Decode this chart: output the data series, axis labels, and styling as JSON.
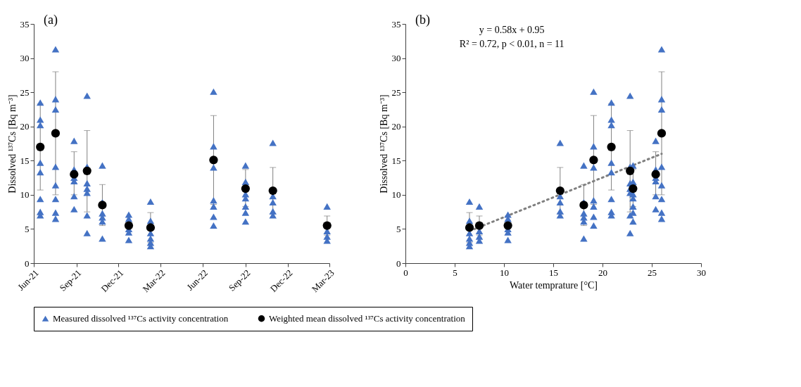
{
  "chart_data": [
    {
      "type": "scatter",
      "ylabel": "Dissolved ¹³⁷Cs [Bq m⁻³]",
      "annotations": [
        "(a)"
      ],
      "xlim": [
        "2021-06-01",
        "2023-03-01"
      ],
      "xticks": [
        {
          "value": "2021-06-01",
          "label": "Jun-21"
        },
        {
          "value": "2021-09-01",
          "label": "Sep-21"
        },
        {
          "value": "2021-12-01",
          "label": "Dec-21"
        },
        {
          "value": "2022-03-01",
          "label": "Mar-22"
        },
        {
          "value": "2022-06-01",
          "label": "Jun-22"
        },
        {
          "value": "2022-09-01",
          "label": "Sep-22"
        },
        {
          "value": "2022-12-01",
          "label": "Dec-22"
        },
        {
          "value": "2023-03-01",
          "label": "Mar-23"
        }
      ],
      "ylim": [
        0,
        35
      ],
      "yticks": [
        0,
        5,
        10,
        15,
        20,
        25,
        30,
        35
      ],
      "grid": false,
      "legend": "bottom",
      "series": [
        {
          "name": "Measured dissolved ¹³⁷Cs activity concentration",
          "marker": "triangle",
          "color": "#4472c4",
          "x": [
            "2021-06-15",
            "2021-06-15",
            "2021-06-15",
            "2021-06-15",
            "2021-06-15",
            "2021-06-15",
            "2021-06-15",
            "2021-06-15",
            "2021-07-18",
            "2021-07-18",
            "2021-07-18",
            "2021-07-18",
            "2021-07-18",
            "2021-07-18",
            "2021-07-18",
            "2021-07-18",
            "2021-08-27",
            "2021-08-27",
            "2021-08-27",
            "2021-08-27",
            "2021-08-27",
            "2021-08-27",
            "2021-09-24",
            "2021-09-24",
            "2021-09-24",
            "2021-09-24",
            "2021-09-24",
            "2021-09-24",
            "2021-09-24",
            "2021-10-27",
            "2021-10-27",
            "2021-10-27",
            "2021-10-27",
            "2021-10-27",
            "2021-10-27",
            "2021-12-23",
            "2021-12-23",
            "2021-12-23",
            "2021-12-23",
            "2021-12-23",
            "2022-02-08",
            "2022-02-08",
            "2022-02-08",
            "2022-02-08",
            "2022-02-08",
            "2022-02-08",
            "2022-06-24",
            "2022-06-24",
            "2022-06-24",
            "2022-06-24",
            "2022-06-24",
            "2022-06-24",
            "2022-06-24",
            "2022-09-01",
            "2022-09-01",
            "2022-09-01",
            "2022-09-01",
            "2022-09-01",
            "2022-09-01",
            "2022-09-01",
            "2022-10-30",
            "2022-10-30",
            "2022-10-30",
            "2022-10-30",
            "2022-10-30",
            "2023-02-24",
            "2023-02-24",
            "2023-02-24",
            "2023-02-24"
          ],
          "values": [
            23.5,
            21.0,
            20.2,
            14.7,
            13.3,
            9.4,
            7.5,
            7.0,
            31.3,
            24.0,
            22.5,
            14.1,
            11.4,
            9.4,
            7.4,
            6.5,
            17.9,
            13.7,
            12.5,
            12.0,
            9.8,
            7.9,
            24.5,
            14.1,
            11.7,
            10.9,
            10.3,
            7.0,
            4.4,
            14.3,
            8.9,
            7.3,
            6.7,
            6.1,
            3.6,
            7.1,
            6.5,
            5.0,
            4.5,
            3.4,
            9.0,
            6.2,
            4.4,
            3.6,
            3.0,
            2.5,
            25.1,
            17.1,
            14.0,
            9.2,
            8.3,
            6.8,
            5.5,
            14.3,
            11.9,
            10.1,
            9.5,
            8.3,
            7.4,
            6.1,
            17.6,
            9.8,
            8.9,
            7.6,
            7.0,
            8.3,
            4.7,
            3.9,
            3.3
          ]
        },
        {
          "name": "Weighted mean dissolved ¹³⁷Cs activity concentration",
          "marker": "circle",
          "color": "#000000",
          "x": [
            "2021-06-15",
            "2021-07-18",
            "2021-08-27",
            "2021-09-24",
            "2021-10-27",
            "2021-12-23",
            "2022-02-08",
            "2022-06-24",
            "2022-09-01",
            "2022-10-30",
            "2023-02-24"
          ],
          "values": [
            17.0,
            19.0,
            13.0,
            13.5,
            8.5,
            5.5,
            5.2,
            15.1,
            10.9,
            10.6,
            5.5
          ],
          "errors": [
            [
              10.7,
              23.3
            ],
            [
              10.0,
              28.0
            ],
            [
              10.0,
              16.3
            ],
            [
              7.5,
              19.4
            ],
            [
              5.5,
              11.5
            ],
            null,
            [
              3.0,
              7.4
            ],
            [
              8.6,
              21.6
            ],
            [
              8.3,
              13.7
            ],
            [
              7.2,
              14.0
            ],
            [
              4.1,
              6.9
            ]
          ]
        }
      ]
    },
    {
      "type": "scatter",
      "xlabel": "Water temprature [°C]",
      "ylabel": "Dissolved ¹³⁷Cs [Bq m⁻³]",
      "annotations": [
        "(b)",
        "y = 0.58x + 0.95",
        "R² = 0.72, p < 0.01, n = 11"
      ],
      "xlim": [
        0,
        30
      ],
      "xticks": [
        0,
        5,
        10,
        15,
        20,
        25,
        30
      ],
      "ylim": [
        0,
        35
      ],
      "yticks": [
        0,
        5,
        10,
        15,
        20,
        25,
        30,
        35
      ],
      "grid": false,
      "legend": "bottom",
      "series": [
        {
          "name": "Measured dissolved ¹³⁷Cs activity concentration",
          "marker": "triangle",
          "color": "#4472c4",
          "x": [
            20.9,
            20.9,
            20.9,
            20.9,
            20.9,
            20.9,
            20.9,
            20.9,
            26.0,
            26.0,
            26.0,
            26.0,
            26.0,
            26.0,
            26.0,
            26.0,
            25.4,
            25.4,
            25.4,
            25.4,
            25.4,
            25.4,
            22.8,
            22.8,
            22.8,
            22.8,
            22.8,
            22.8,
            22.8,
            18.1,
            18.1,
            18.1,
            18.1,
            18.1,
            18.1,
            10.4,
            10.4,
            10.4,
            10.4,
            10.4,
            6.5,
            6.5,
            6.5,
            6.5,
            6.5,
            6.5,
            19.1,
            19.1,
            19.1,
            19.1,
            19.1,
            19.1,
            19.1,
            23.1,
            23.1,
            23.1,
            23.1,
            23.1,
            23.1,
            23.1,
            15.7,
            15.7,
            15.7,
            15.7,
            15.7,
            7.5,
            7.5,
            7.5,
            7.5
          ],
          "values": [
            23.5,
            21.0,
            20.2,
            14.7,
            13.3,
            9.4,
            7.5,
            7.0,
            31.3,
            24.0,
            22.5,
            14.1,
            11.4,
            9.4,
            7.4,
            6.5,
            17.9,
            13.7,
            12.5,
            12.0,
            9.8,
            7.9,
            24.5,
            14.1,
            11.7,
            10.9,
            10.3,
            7.0,
            4.4,
            14.3,
            8.9,
            7.3,
            6.7,
            6.1,
            3.6,
            7.1,
            6.5,
            5.0,
            4.5,
            3.4,
            9.0,
            6.2,
            4.4,
            3.6,
            3.0,
            2.5,
            25.1,
            17.1,
            14.0,
            9.2,
            8.3,
            6.8,
            5.5,
            14.3,
            11.9,
            10.1,
            9.5,
            8.3,
            7.4,
            6.1,
            17.6,
            9.8,
            8.9,
            7.6,
            7.0,
            8.3,
            4.7,
            3.9,
            3.3
          ]
        },
        {
          "type": "line",
          "line_style": "dotted",
          "color": "#808080",
          "x": [
            6.5,
            26.0
          ],
          "values": [
            4.7,
            16.0
          ]
        },
        {
          "name": "Weighted mean dissolved ¹³⁷Cs activity concentration",
          "marker": "circle",
          "color": "#000000",
          "x": [
            20.9,
            26.0,
            25.4,
            22.8,
            18.1,
            10.4,
            6.5,
            19.1,
            23.1,
            15.7,
            7.5
          ],
          "values": [
            17.0,
            19.0,
            13.0,
            13.5,
            8.5,
            5.5,
            5.2,
            15.1,
            10.9,
            10.6,
            5.5
          ],
          "errors": [
            [
              10.7,
              23.3
            ],
            [
              10.0,
              28.0
            ],
            [
              10.0,
              16.3
            ],
            [
              7.5,
              19.4
            ],
            [
              5.5,
              11.5
            ],
            null,
            [
              3.0,
              7.4
            ],
            [
              8.6,
              21.6
            ],
            [
              8.3,
              13.7
            ],
            [
              7.2,
              14.0
            ],
            [
              4.1,
              6.9
            ]
          ]
        }
      ]
    }
  ]
}
